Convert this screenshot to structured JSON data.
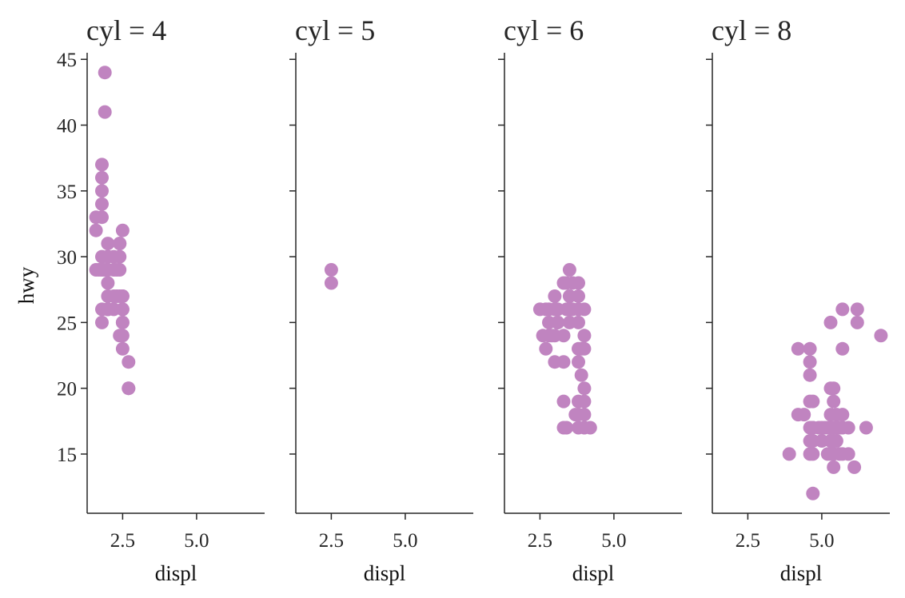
{
  "chart_data": {
    "type": "scatter",
    "facet_variable": "cyl",
    "xlabel": "displ",
    "ylabel": "hwy",
    "xlim": [
      1.3,
      7.3
    ],
    "ylim": [
      10.5,
      45.5
    ],
    "x_ticks": [
      2.5,
      5.0
    ],
    "y_ticks": [
      15,
      20,
      25,
      30,
      35,
      40,
      45
    ],
    "grid": false,
    "point_color": "#c084c0",
    "facets": [
      {
        "title": "cyl = 4",
        "points": [
          [
            1.8,
            29
          ],
          [
            1.8,
            29
          ],
          [
            2.0,
            31
          ],
          [
            2.0,
            30
          ],
          [
            1.8,
            26
          ],
          [
            1.8,
            25
          ],
          [
            2.0,
            28
          ],
          [
            2.0,
            29
          ],
          [
            2.4,
            27
          ],
          [
            2.5,
            24
          ],
          [
            2.5,
            26
          ],
          [
            2.5,
            25
          ],
          [
            2.5,
            27
          ],
          [
            2.2,
            26
          ],
          [
            2.2,
            27
          ],
          [
            2.4,
            30
          ],
          [
            2.4,
            31
          ],
          [
            2.7,
            20
          ],
          [
            2.7,
            20
          ],
          [
            2.7,
            22
          ],
          [
            2.0,
            26
          ],
          [
            2.2,
            29
          ],
          [
            2.4,
            29
          ],
          [
            2.4,
            31
          ],
          [
            2.5,
            32
          ],
          [
            2.5,
            27
          ],
          [
            2.5,
            26
          ],
          [
            2.5,
            25
          ],
          [
            1.9,
            44
          ],
          [
            1.9,
            41
          ],
          [
            1.8,
            37
          ],
          [
            1.8,
            36
          ],
          [
            1.8,
            35
          ],
          [
            1.8,
            34
          ],
          [
            1.8,
            33
          ],
          [
            1.6,
            33
          ],
          [
            1.6,
            32
          ],
          [
            1.6,
            29
          ],
          [
            1.9,
            29
          ],
          [
            2.0,
            27
          ],
          [
            2.0,
            29
          ],
          [
            2.0,
            26
          ],
          [
            2.0,
            30
          ],
          [
            2.3,
            29
          ],
          [
            2.3,
            27
          ],
          [
            2.4,
            24
          ],
          [
            2.5,
            23
          ],
          [
            2.2,
            30
          ],
          [
            1.7,
            29
          ],
          [
            1.8,
            30
          ],
          [
            2.0,
            26
          ]
        ]
      },
      {
        "title": "cyl = 5",
        "points": [
          [
            2.5,
            29
          ],
          [
            2.5,
            28
          ]
        ]
      },
      {
        "title": "cyl = 6",
        "points": [
          [
            2.8,
            26
          ],
          [
            2.8,
            25
          ],
          [
            3.1,
            25
          ],
          [
            2.8,
            24
          ],
          [
            3.1,
            25
          ],
          [
            2.5,
            26
          ],
          [
            2.7,
            26
          ],
          [
            3.0,
            26
          ],
          [
            3.3,
            24
          ],
          [
            3.5,
            26
          ],
          [
            3.8,
            26
          ],
          [
            4.0,
            26
          ],
          [
            3.5,
            27
          ],
          [
            3.3,
            28
          ],
          [
            3.8,
            28
          ],
          [
            3.5,
            29
          ],
          [
            3.3,
            17
          ],
          [
            3.4,
            17
          ],
          [
            3.8,
            17
          ],
          [
            4.0,
            17
          ],
          [
            4.2,
            17
          ],
          [
            3.8,
            19
          ],
          [
            4.0,
            19
          ],
          [
            3.3,
            19
          ],
          [
            3.0,
            22
          ],
          [
            3.3,
            22
          ],
          [
            3.8,
            22
          ],
          [
            3.9,
            21
          ],
          [
            4.0,
            20
          ],
          [
            3.7,
            18
          ],
          [
            3.8,
            18
          ],
          [
            4.0,
            18
          ],
          [
            2.7,
            23
          ],
          [
            3.9,
            23
          ],
          [
            4.0,
            23
          ],
          [
            3.0,
            24
          ],
          [
            4.0,
            24
          ],
          [
            3.8,
            25
          ],
          [
            3.5,
            25
          ],
          [
            3.1,
            26
          ],
          [
            3.6,
            26
          ],
          [
            3.0,
            27
          ],
          [
            3.8,
            27
          ],
          [
            3.4,
            28
          ],
          [
            2.9,
            24
          ],
          [
            3.1,
            25
          ],
          [
            2.6,
            24
          ],
          [
            3.8,
            23
          ],
          [
            3.4,
            26
          ],
          [
            3.6,
            28
          ]
        ]
      },
      {
        "title": "cyl = 8",
        "points": [
          [
            4.2,
            23
          ],
          [
            4.6,
            23
          ],
          [
            4.6,
            22
          ],
          [
            4.6,
            21
          ],
          [
            5.3,
            20
          ],
          [
            5.4,
            20
          ],
          [
            5.4,
            19
          ],
          [
            4.6,
            19
          ],
          [
            4.7,
            19
          ],
          [
            4.2,
            18
          ],
          [
            4.4,
            18
          ],
          [
            5.5,
            18
          ],
          [
            5.7,
            18
          ],
          [
            4.6,
            17
          ],
          [
            4.7,
            17
          ],
          [
            5.0,
            17
          ],
          [
            5.2,
            17
          ],
          [
            5.3,
            17
          ],
          [
            5.6,
            17
          ],
          [
            5.7,
            17
          ],
          [
            6.5,
            17
          ],
          [
            4.6,
            16
          ],
          [
            4.7,
            16
          ],
          [
            5.3,
            16
          ],
          [
            5.4,
            16
          ],
          [
            5.5,
            16
          ],
          [
            3.9,
            15
          ],
          [
            4.6,
            15
          ],
          [
            4.7,
            15
          ],
          [
            5.3,
            15
          ],
          [
            5.4,
            15
          ],
          [
            5.7,
            15
          ],
          [
            5.9,
            15
          ],
          [
            5.4,
            14
          ],
          [
            6.1,
            14
          ],
          [
            4.7,
            12
          ],
          [
            5.3,
            25
          ],
          [
            5.7,
            26
          ],
          [
            6.2,
            26
          ],
          [
            6.2,
            25
          ],
          [
            7.0,
            24
          ],
          [
            5.7,
            23
          ],
          [
            5.5,
            17
          ],
          [
            5.3,
            18
          ],
          [
            5.9,
            17
          ],
          [
            4.9,
            17
          ],
          [
            5.1,
            17
          ],
          [
            5.4,
            17
          ],
          [
            5.0,
            16
          ],
          [
            5.6,
            15
          ],
          [
            4.7,
            17
          ],
          [
            5.2,
            15
          ]
        ]
      }
    ]
  }
}
